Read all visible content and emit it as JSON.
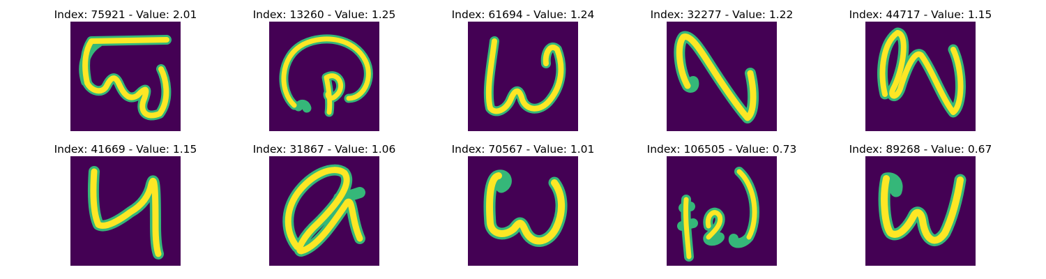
{
  "colormap": {
    "background": "#440154",
    "mid": "#21918c",
    "edge": "#35b779",
    "peak": "#fde725"
  },
  "panels": [
    {
      "title": "Index: 75921 - Value: 2.01",
      "glyph": "glyph-75921"
    },
    {
      "title": "Index: 13260 - Value: 1.25",
      "glyph": "glyph-13260"
    },
    {
      "title": "Index: 61694 - Value: 1.24",
      "glyph": "glyph-61694"
    },
    {
      "title": "Index: 32277 - Value: 1.22",
      "glyph": "glyph-32277"
    },
    {
      "title": "Index: 44717 - Value: 1.15",
      "glyph": "glyph-44717"
    },
    {
      "title": "Index: 41669 - Value: 1.15",
      "glyph": "glyph-41669"
    },
    {
      "title": "Index: 31867 - Value: 1.06",
      "glyph": "glyph-31867"
    },
    {
      "title": "Index: 70567 - Value: 1.01",
      "glyph": "glyph-70567"
    },
    {
      "title": "Index: 106505 - Value: 0.73",
      "glyph": "glyph-106505"
    },
    {
      "title": "Index: 89268 - Value: 0.67",
      "glyph": "glyph-89268"
    }
  ]
}
